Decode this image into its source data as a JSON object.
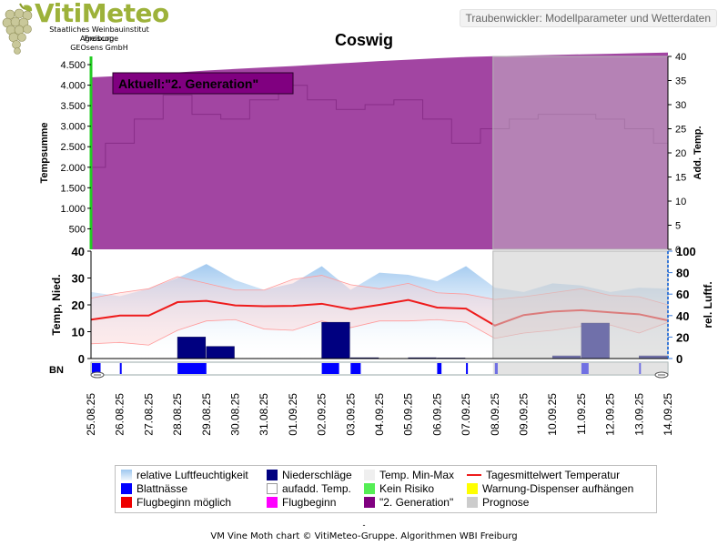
{
  "brand": {
    "name": "VitiMeteo",
    "line1": "Staatliches Weinbauinstitut Freiburg",
    "line2": "Agroscope",
    "line3": "GEOsens GmbH"
  },
  "header": {
    "model_title": "Traubenwickler: Modellparameter und Wetterdaten"
  },
  "footer": {
    "dash": "-",
    "credit": "VM Vine Moth chart © VitiMeteo-Gruppe. Algorithmen WBI Freiburg"
  },
  "colors": {
    "generation": "#800080",
    "humidity": "#9ec7ef",
    "precip": "#000080",
    "leafwet": "#0000ff",
    "tmean": "#ee1c1c",
    "forecast": "#cccccc"
  },
  "chart_data": [
    {
      "type": "area",
      "title": "Coswig",
      "annotation": "Aktuell:\"2. Generation\"",
      "ylabel": "Tempsumme",
      "y2label": "Add. Temp.",
      "ylim": [
        0,
        4700
      ],
      "yticks": [
        "500",
        "1.000",
        "1.500",
        "2.000",
        "2.500",
        "3.000",
        "3.500",
        "4.000",
        "4.500"
      ],
      "y2lim": [
        0,
        40
      ],
      "y2ticks": [
        "0",
        "5",
        "10",
        "15",
        "20",
        "25",
        "30",
        "35",
        "40"
      ],
      "x": [
        "25.08.25",
        "26.08.25",
        "27.08.25",
        "28.08.25",
        "29.08.25",
        "30.08.25",
        "31.08.25",
        "01.09.25",
        "02.09.25",
        "03.09.25",
        "04.09.25",
        "05.09.25",
        "06.09.25",
        "07.09.25",
        "08.09.25",
        "09.09.25",
        "10.09.25",
        "11.09.25",
        "12.09.25",
        "13.09.25",
        "14.09.25"
      ],
      "series": [
        {
          "name": "\"2. Generation\"",
          "values": [
            4190,
            4225,
            4265,
            4310,
            4355,
            4395,
            4430,
            4465,
            4505,
            4545,
            4585,
            4620,
            4655,
            4685,
            4705,
            4720,
            4735,
            4750,
            4765,
            4780,
            4795
          ]
        },
        {
          "name": "Add. Temp.",
          "axis": "right",
          "values": [
            17,
            22,
            27,
            32,
            28,
            27,
            31,
            34,
            31,
            29,
            30,
            31,
            27,
            22,
            25,
            27,
            28,
            28,
            27,
            25,
            22
          ]
        }
      ],
      "forecast_from": "08.09.25",
      "grid": false
    },
    {
      "type": "line",
      "ylabel": "Temp, Nied.",
      "y2label": "rel. Luftf.",
      "ylim": [
        0,
        40
      ],
      "yticks": [
        "0",
        "10",
        "20",
        "30",
        "40"
      ],
      "y2lim": [
        0,
        100
      ],
      "y2ticks": [
        "0",
        "20",
        "40",
        "60",
        "80",
        "100"
      ],
      "x": [
        "25.08.25",
        "26.08.25",
        "27.08.25",
        "28.08.25",
        "29.08.25",
        "30.08.25",
        "31.08.25",
        "01.09.25",
        "02.09.25",
        "03.09.25",
        "04.09.25",
        "05.09.25",
        "06.09.25",
        "07.09.25",
        "08.09.25",
        "09.09.25",
        "10.09.25",
        "11.09.25",
        "12.09.25",
        "13.09.25",
        "14.09.25"
      ],
      "series": [
        {
          "name": "relative Luftfeuchtigkeit",
          "axis": "right",
          "values": [
            62,
            58,
            65,
            75,
            88,
            73,
            64,
            70,
            86,
            64,
            80,
            78,
            72,
            86,
            66,
            62,
            70,
            68,
            62,
            66,
            65
          ]
        },
        {
          "name": "Tagesmittelwert Temperatur",
          "values": [
            14.5,
            16.0,
            16.0,
            21.0,
            21.5,
            19.8,
            19.5,
            19.6,
            20.4,
            18.4,
            20.0,
            21.8,
            19.0,
            18.6,
            12.3,
            16.2,
            17.5,
            18.0,
            17.2,
            16.5,
            14.2
          ]
        },
        {
          "name": "Temp. Max",
          "values": [
            22.5,
            24.5,
            26.0,
            30.5,
            28.0,
            25.5,
            25.5,
            29.5,
            31.0,
            27.5,
            26.0,
            28.0,
            24.5,
            24.0,
            22.0,
            23.0,
            24.5,
            26.0,
            23.5,
            23.0,
            20.0
          ]
        },
        {
          "name": "Temp. Min",
          "values": [
            5.5,
            6.0,
            5.0,
            10.5,
            14.0,
            14.5,
            11.0,
            10.5,
            14.0,
            11.5,
            14.0,
            14.0,
            14.5,
            13.5,
            7.5,
            9.5,
            10.5,
            12.0,
            12.5,
            9.5,
            13.5
          ]
        },
        {
          "name": "Niederschläge",
          "values": [
            0,
            0,
            0,
            0,
            8,
            4.5,
            0,
            0,
            0,
            13.5,
            0.3,
            0,
            0.3,
            0.2,
            0,
            0,
            0,
            1,
            13.2,
            0,
            1
          ]
        }
      ],
      "forecast_from": "08.09.25",
      "grid": false
    },
    {
      "type": "bar",
      "label": "BN",
      "name": "Blattnässe",
      "note": "Leaf wetness strip; fractions of a day wet",
      "x": [
        "25.08.25",
        "26.08.25",
        "27.08.25",
        "28.08.25",
        "29.08.25",
        "30.08.25",
        "31.08.25",
        "01.09.25",
        "02.09.25",
        "03.09.25",
        "04.09.25",
        "05.09.25",
        "06.09.25",
        "07.09.25",
        "08.09.25",
        "09.09.25",
        "10.09.25",
        "11.09.25",
        "12.09.25",
        "13.09.25",
        "14.09.25"
      ],
      "values": [
        0.3,
        0,
        0.05,
        0,
        1,
        0,
        0,
        0,
        0,
        0.6,
        0.35,
        0,
        0,
        0.15,
        0.05,
        0.1,
        0,
        0,
        0.25,
        0,
        0.05
      ]
    }
  ],
  "legend": {
    "items": [
      {
        "label": "relative Luftfeuchtigkeit",
        "kind": "gradient",
        "color": "#9ec7ef"
      },
      {
        "label": "Niederschläge",
        "kind": "box",
        "color": "#000080"
      },
      {
        "label": "Temp. Min-Max",
        "kind": "box",
        "color": "#efefef"
      },
      {
        "label": "Tagesmittelwert Temperatur",
        "kind": "line",
        "color": "#ee1c1c"
      },
      {
        "label": "Blattnässe",
        "kind": "box",
        "color": "#0000ff"
      },
      {
        "label": "aufadd. Temp.",
        "kind": "hollow",
        "color": "#ffffff"
      },
      {
        "label": "Kein Risiko",
        "kind": "box",
        "color": "#55ee55"
      },
      {
        "label": "Warnung-Dispenser aufhängen",
        "kind": "box",
        "color": "#ffff00"
      },
      {
        "label": "Flugbeginn möglich",
        "kind": "box",
        "color": "#ee0000"
      },
      {
        "label": "Flugbeginn",
        "kind": "box",
        "color": "#ff00ff"
      },
      {
        "label": "\"2. Generation\"",
        "kind": "box",
        "color": "#800080"
      },
      {
        "label": "Prognose",
        "kind": "box",
        "color": "#cccccc"
      }
    ]
  }
}
